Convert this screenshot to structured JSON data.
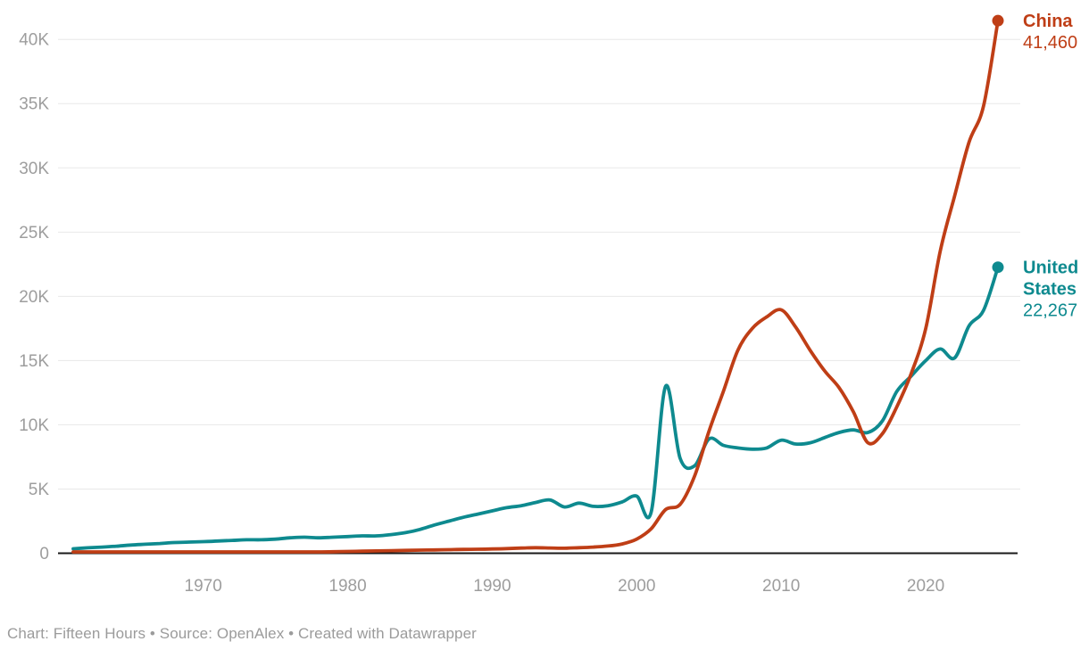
{
  "chart_data": {
    "type": "line",
    "title": "",
    "xlabel": "",
    "ylabel": "",
    "grid": "horizontal",
    "legend_position": "end-of-line",
    "xlim": [
      1961,
      2025
    ],
    "ylim": [
      0,
      42000
    ],
    "x": [
      1961,
      1962,
      1963,
      1964,
      1965,
      1966,
      1967,
      1968,
      1969,
      1970,
      1971,
      1972,
      1973,
      1974,
      1975,
      1976,
      1977,
      1978,
      1979,
      1980,
      1981,
      1982,
      1983,
      1984,
      1985,
      1986,
      1987,
      1988,
      1989,
      1990,
      1991,
      1992,
      1993,
      1994,
      1995,
      1996,
      1997,
      1998,
      1999,
      2000,
      2001,
      2002,
      2003,
      2004,
      2005,
      2006,
      2007,
      2008,
      2009,
      2010,
      2011,
      2012,
      2013,
      2014,
      2015,
      2016,
      2017,
      2018,
      2019,
      2020,
      2021,
      2022,
      2023,
      2024,
      2025
    ],
    "series": [
      {
        "name": "United States",
        "color": "#0e8a8f",
        "end_label_lines": [
          "United",
          "States"
        ],
        "end_value_label": "22,267",
        "end_value": 22267,
        "values": [
          350,
          420,
          480,
          550,
          640,
          700,
          760,
          830,
          870,
          900,
          950,
          1000,
          1050,
          1050,
          1100,
          1200,
          1250,
          1200,
          1250,
          1300,
          1350,
          1350,
          1450,
          1600,
          1850,
          2200,
          2500,
          2800,
          3050,
          3300,
          3550,
          3700,
          3950,
          4150,
          3600,
          3900,
          3650,
          3700,
          4000,
          4450,
          3200,
          13000,
          7400,
          6800,
          8900,
          8400,
          8200,
          8100,
          8200,
          8800,
          8500,
          8600,
          9000,
          9400,
          9600,
          9400,
          10300,
          12600,
          13800,
          15000,
          15900,
          15200,
          17700,
          18900,
          22267
        ]
      },
      {
        "name": "China",
        "color": "#bf3e16",
        "end_label_lines": [
          "China"
        ],
        "end_value_label": "41,460",
        "end_value": 41460,
        "values": [
          20,
          20,
          25,
          25,
          30,
          30,
          25,
          25,
          30,
          35,
          40,
          45,
          55,
          65,
          70,
          75,
          85,
          100,
          120,
          140,
          160,
          180,
          200,
          220,
          240,
          260,
          280,
          300,
          310,
          330,
          360,
          400,
          430,
          410,
          390,
          430,
          480,
          560,
          720,
          1100,
          1900,
          3400,
          3800,
          6000,
          9500,
          12600,
          15800,
          17500,
          18400,
          18950,
          17600,
          15800,
          14200,
          12900,
          11000,
          8600,
          9300,
          11400,
          14000,
          17500,
          23500,
          27800,
          32000,
          34800,
          41460
        ]
      }
    ],
    "y_ticks": [
      {
        "value": 0,
        "label": "0"
      },
      {
        "value": 5000,
        "label": "5K"
      },
      {
        "value": 10000,
        "label": "10K"
      },
      {
        "value": 15000,
        "label": "15K"
      },
      {
        "value": 20000,
        "label": "20K"
      },
      {
        "value": 25000,
        "label": "25K"
      },
      {
        "value": 30000,
        "label": "30K"
      },
      {
        "value": 35000,
        "label": "35K"
      },
      {
        "value": 40000,
        "label": "40K"
      }
    ],
    "x_ticks": [
      {
        "value": 1970,
        "label": "1970"
      },
      {
        "value": 1980,
        "label": "1980"
      },
      {
        "value": 1990,
        "label": "1990"
      },
      {
        "value": 2000,
        "label": "2000"
      },
      {
        "value": 2010,
        "label": "2010"
      },
      {
        "value": 2020,
        "label": "2020"
      }
    ]
  },
  "colors": {
    "grid": "#e8e8e8",
    "axis": "#1a1a1a",
    "tick_text": "#9d9d9d",
    "footer_text": "#9b9b9b",
    "background": "#ffffff"
  },
  "footer": {
    "text": "Chart: Fifteen Hours • Source: OpenAlex • Created with Datawrapper"
  }
}
